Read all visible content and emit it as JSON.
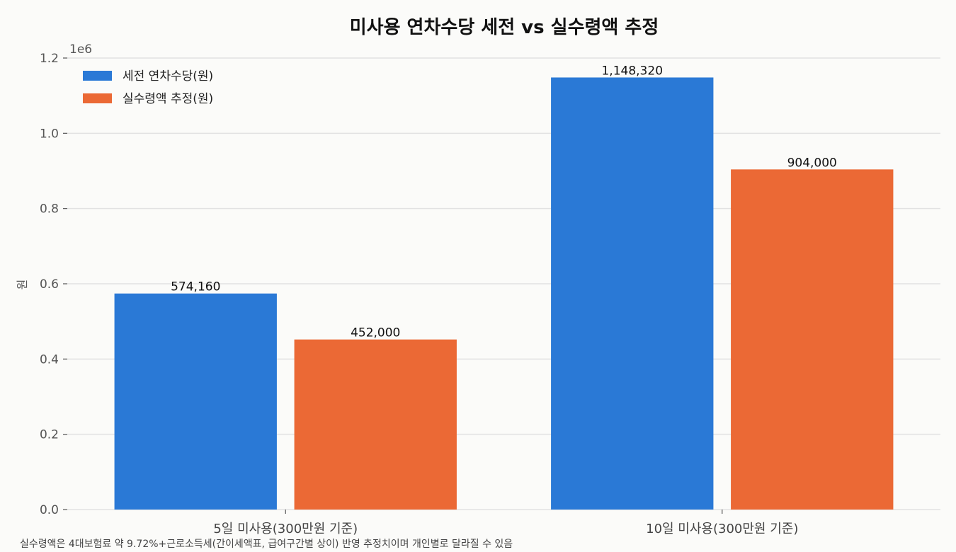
{
  "chart_data": {
    "type": "bar",
    "title": "미사용 연차수당 세전 vs 실수령액 추정",
    "ylabel": "원",
    "y_offset_label": "1e6",
    "categories": [
      "5일 미사용(300만원 기준)",
      "10일 미사용(300만원 기준)"
    ],
    "series": [
      {
        "name": "세전 연차수당(원)",
        "values": [
          574160,
          1148320
        ],
        "labels": [
          "574,160",
          "1,148,320"
        ],
        "color": "#2a79d6"
      },
      {
        "name": "실수령액 추정(원)",
        "values": [
          452000,
          904000
        ],
        "labels": [
          "452,000",
          "904,000"
        ],
        "color": "#eb6935"
      }
    ],
    "ylim": [
      0,
      1200000
    ],
    "yticks": [
      0,
      200000,
      400000,
      600000,
      800000,
      1000000,
      1200000
    ],
    "ytick_labels": [
      "0.0",
      "0.2",
      "0.4",
      "0.6",
      "0.8",
      "1.0",
      "1.2"
    ],
    "grid": true,
    "legend_position": "top-left",
    "footnote": "실수령액은 4대보험료 약 9.72%+근로소득세(간이세액표, 급여구간별 상이) 반영 추정치이며 개인별로 달라질 수 있음"
  }
}
